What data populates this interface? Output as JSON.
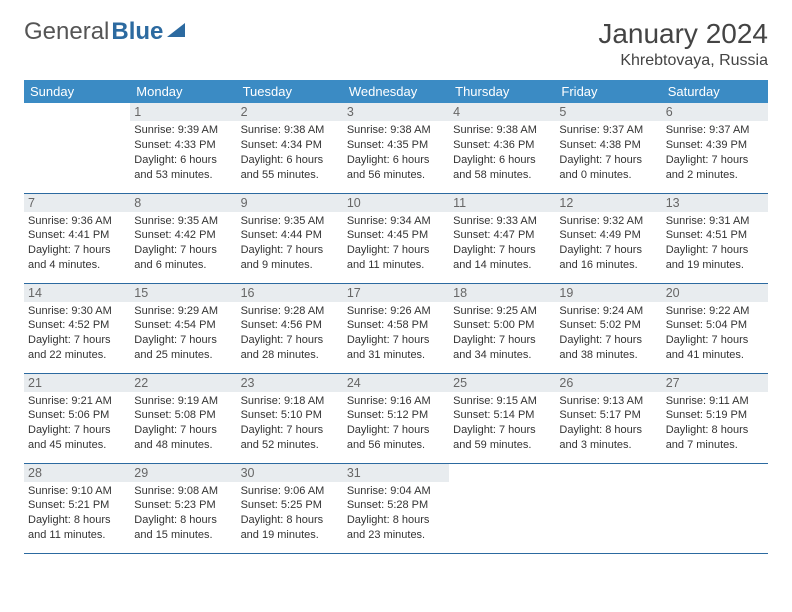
{
  "brand": {
    "part1": "General",
    "part2": "Blue"
  },
  "title": "January 2024",
  "location": "Khrebtovaya, Russia",
  "colors": {
    "header_bg": "#3b8bc4",
    "daynum_bg": "#e8ecef",
    "rule": "#2c6aa0",
    "brand_blue": "#2c6aa0"
  },
  "dayHeaders": [
    "Sunday",
    "Monday",
    "Tuesday",
    "Wednesday",
    "Thursday",
    "Friday",
    "Saturday"
  ],
  "weeks": [
    [
      null,
      {
        "n": "1",
        "sr": "Sunrise: 9:39 AM",
        "ss": "Sunset: 4:33 PM",
        "dl": "Daylight: 6 hours and 53 minutes."
      },
      {
        "n": "2",
        "sr": "Sunrise: 9:38 AM",
        "ss": "Sunset: 4:34 PM",
        "dl": "Daylight: 6 hours and 55 minutes."
      },
      {
        "n": "3",
        "sr": "Sunrise: 9:38 AM",
        "ss": "Sunset: 4:35 PM",
        "dl": "Daylight: 6 hours and 56 minutes."
      },
      {
        "n": "4",
        "sr": "Sunrise: 9:38 AM",
        "ss": "Sunset: 4:36 PM",
        "dl": "Daylight: 6 hours and 58 minutes."
      },
      {
        "n": "5",
        "sr": "Sunrise: 9:37 AM",
        "ss": "Sunset: 4:38 PM",
        "dl": "Daylight: 7 hours and 0 minutes."
      },
      {
        "n": "6",
        "sr": "Sunrise: 9:37 AM",
        "ss": "Sunset: 4:39 PM",
        "dl": "Daylight: 7 hours and 2 minutes."
      }
    ],
    [
      {
        "n": "7",
        "sr": "Sunrise: 9:36 AM",
        "ss": "Sunset: 4:41 PM",
        "dl": "Daylight: 7 hours and 4 minutes."
      },
      {
        "n": "8",
        "sr": "Sunrise: 9:35 AM",
        "ss": "Sunset: 4:42 PM",
        "dl": "Daylight: 7 hours and 6 minutes."
      },
      {
        "n": "9",
        "sr": "Sunrise: 9:35 AM",
        "ss": "Sunset: 4:44 PM",
        "dl": "Daylight: 7 hours and 9 minutes."
      },
      {
        "n": "10",
        "sr": "Sunrise: 9:34 AM",
        "ss": "Sunset: 4:45 PM",
        "dl": "Daylight: 7 hours and 11 minutes."
      },
      {
        "n": "11",
        "sr": "Sunrise: 9:33 AM",
        "ss": "Sunset: 4:47 PM",
        "dl": "Daylight: 7 hours and 14 minutes."
      },
      {
        "n": "12",
        "sr": "Sunrise: 9:32 AM",
        "ss": "Sunset: 4:49 PM",
        "dl": "Daylight: 7 hours and 16 minutes."
      },
      {
        "n": "13",
        "sr": "Sunrise: 9:31 AM",
        "ss": "Sunset: 4:51 PM",
        "dl": "Daylight: 7 hours and 19 minutes."
      }
    ],
    [
      {
        "n": "14",
        "sr": "Sunrise: 9:30 AM",
        "ss": "Sunset: 4:52 PM",
        "dl": "Daylight: 7 hours and 22 minutes."
      },
      {
        "n": "15",
        "sr": "Sunrise: 9:29 AM",
        "ss": "Sunset: 4:54 PM",
        "dl": "Daylight: 7 hours and 25 minutes."
      },
      {
        "n": "16",
        "sr": "Sunrise: 9:28 AM",
        "ss": "Sunset: 4:56 PM",
        "dl": "Daylight: 7 hours and 28 minutes."
      },
      {
        "n": "17",
        "sr": "Sunrise: 9:26 AM",
        "ss": "Sunset: 4:58 PM",
        "dl": "Daylight: 7 hours and 31 minutes."
      },
      {
        "n": "18",
        "sr": "Sunrise: 9:25 AM",
        "ss": "Sunset: 5:00 PM",
        "dl": "Daylight: 7 hours and 34 minutes."
      },
      {
        "n": "19",
        "sr": "Sunrise: 9:24 AM",
        "ss": "Sunset: 5:02 PM",
        "dl": "Daylight: 7 hours and 38 minutes."
      },
      {
        "n": "20",
        "sr": "Sunrise: 9:22 AM",
        "ss": "Sunset: 5:04 PM",
        "dl": "Daylight: 7 hours and 41 minutes."
      }
    ],
    [
      {
        "n": "21",
        "sr": "Sunrise: 9:21 AM",
        "ss": "Sunset: 5:06 PM",
        "dl": "Daylight: 7 hours and 45 minutes."
      },
      {
        "n": "22",
        "sr": "Sunrise: 9:19 AM",
        "ss": "Sunset: 5:08 PM",
        "dl": "Daylight: 7 hours and 48 minutes."
      },
      {
        "n": "23",
        "sr": "Sunrise: 9:18 AM",
        "ss": "Sunset: 5:10 PM",
        "dl": "Daylight: 7 hours and 52 minutes."
      },
      {
        "n": "24",
        "sr": "Sunrise: 9:16 AM",
        "ss": "Sunset: 5:12 PM",
        "dl": "Daylight: 7 hours and 56 minutes."
      },
      {
        "n": "25",
        "sr": "Sunrise: 9:15 AM",
        "ss": "Sunset: 5:14 PM",
        "dl": "Daylight: 7 hours and 59 minutes."
      },
      {
        "n": "26",
        "sr": "Sunrise: 9:13 AM",
        "ss": "Sunset: 5:17 PM",
        "dl": "Daylight: 8 hours and 3 minutes."
      },
      {
        "n": "27",
        "sr": "Sunrise: 9:11 AM",
        "ss": "Sunset: 5:19 PM",
        "dl": "Daylight: 8 hours and 7 minutes."
      }
    ],
    [
      {
        "n": "28",
        "sr": "Sunrise: 9:10 AM",
        "ss": "Sunset: 5:21 PM",
        "dl": "Daylight: 8 hours and 11 minutes."
      },
      {
        "n": "29",
        "sr": "Sunrise: 9:08 AM",
        "ss": "Sunset: 5:23 PM",
        "dl": "Daylight: 8 hours and 15 minutes."
      },
      {
        "n": "30",
        "sr": "Sunrise: 9:06 AM",
        "ss": "Sunset: 5:25 PM",
        "dl": "Daylight: 8 hours and 19 minutes."
      },
      {
        "n": "31",
        "sr": "Sunrise: 9:04 AM",
        "ss": "Sunset: 5:28 PM",
        "dl": "Daylight: 8 hours and 23 minutes."
      },
      null,
      null,
      null
    ]
  ]
}
